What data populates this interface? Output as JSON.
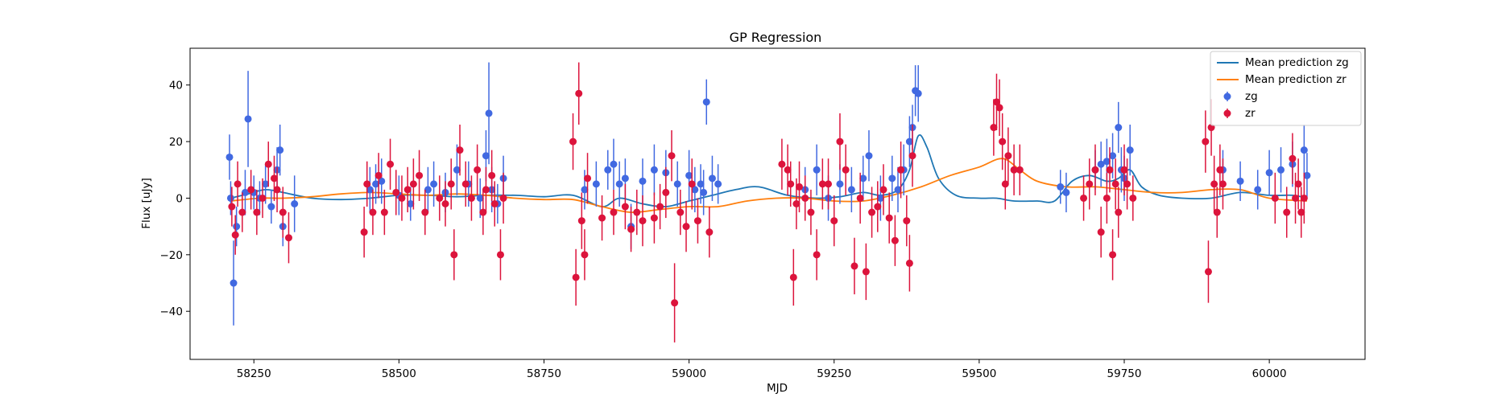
{
  "chart_data": {
    "type": "scatter",
    "title": "GP Regression",
    "xlabel": "MJD",
    "ylabel": "Flux [uJy]",
    "xlim": [
      58140,
      60165
    ],
    "ylim": [
      -57,
      53
    ],
    "xticks": [
      58250,
      58500,
      58750,
      59000,
      59250,
      59500,
      59750,
      60000
    ],
    "yticks": [
      -40,
      -20,
      0,
      20,
      40
    ],
    "grid": false,
    "legend_position": "top-right",
    "legend": [
      "Mean prediction zg",
      "Mean prediction zr",
      "zg",
      "zr"
    ],
    "colors": {
      "zg_line": "#1f77b4",
      "zr_line": "#ff7f0e",
      "zg_points": "#4169e1",
      "zr_points": "#dc143c"
    },
    "lines": [
      {
        "name": "Mean prediction zg",
        "x": [
          58210,
          58240,
          58270,
          58300,
          58350,
          58400,
          58450,
          58500,
          58550,
          58600,
          58650,
          58700,
          58750,
          58800,
          58850,
          58880,
          58920,
          58960,
          59000,
          59040,
          59080,
          59120,
          59170,
          59220,
          59260,
          59300,
          59330,
          59360,
          59380,
          59395,
          59410,
          59430,
          59460,
          59500,
          59530,
          59560,
          59600,
          59630,
          59660,
          59690,
          59720,
          59740,
          59760,
          59780,
          59810,
          59850,
          59900,
          59950,
          60000,
          60040,
          60065
        ],
        "y": [
          0,
          1.5,
          3,
          2,
          0,
          -0.5,
          0,
          1,
          1,
          0.5,
          1,
          1,
          0.5,
          1,
          -3,
          0,
          -2,
          -3,
          -1,
          1,
          3,
          4,
          1,
          0,
          0.5,
          2,
          1,
          3,
          10,
          22,
          18,
          7,
          1,
          0,
          0,
          -1,
          -1,
          -1,
          6,
          8,
          6,
          7,
          10,
          4,
          1,
          0,
          0,
          2,
          1,
          1,
          0
        ]
      },
      {
        "name": "Mean prediction zr",
        "x": [
          58210,
          58260,
          58300,
          58350,
          58400,
          58450,
          58500,
          58550,
          58600,
          58650,
          58700,
          58750,
          58800,
          58850,
          58900,
          58950,
          59000,
          59050,
          59100,
          59150,
          59200,
          59250,
          59300,
          59350,
          59400,
          59450,
          59500,
          59540,
          59570,
          59600,
          59650,
          59700,
          59750,
          59800,
          59850,
          59900,
          59950,
          60000,
          60065
        ],
        "y": [
          -1,
          0,
          0,
          0.5,
          1.5,
          2,
          1.5,
          1,
          1.5,
          1,
          0,
          -0.5,
          -0.5,
          -3,
          -5,
          -4,
          -3,
          -3,
          -1,
          0,
          0,
          -1,
          -1,
          1,
          4,
          8,
          11,
          14,
          10,
          6,
          4,
          4,
          3,
          2,
          2,
          3,
          3,
          0,
          -1
        ]
      }
    ],
    "series": [
      {
        "name": "zg",
        "x": [
          58208,
          58210,
          58215,
          58220,
          58235,
          58240,
          58250,
          58260,
          58270,
          58280,
          58290,
          58295,
          58300,
          58320,
          58450,
          58460,
          58470,
          58500,
          58520,
          58550,
          58560,
          58580,
          58600,
          58620,
          58640,
          58650,
          58655,
          58660,
          58670,
          58680,
          58820,
          58840,
          58860,
          58870,
          58880,
          58890,
          58900,
          58920,
          58940,
          58960,
          58980,
          59000,
          59010,
          59020,
          59025,
          59030,
          59040,
          59050,
          59200,
          59220,
          59240,
          59260,
          59280,
          59300,
          59310,
          59330,
          59350,
          59360,
          59370,
          59380,
          59385,
          59390,
          59395,
          59640,
          59650,
          59700,
          59710,
          59720,
          59730,
          59740,
          59745,
          59750,
          59760,
          59920,
          59950,
          59980,
          60000,
          60020,
          60040,
          60060,
          60065
        ],
        "y": [
          14.5,
          0,
          -30,
          -10,
          2,
          28,
          2,
          0,
          5,
          -3,
          10,
          17,
          -10,
          -2,
          3,
          5,
          6,
          1,
          -2,
          3,
          5,
          2,
          10,
          5,
          0,
          15,
          30,
          3,
          -2,
          7,
          3,
          5,
          10,
          12,
          5,
          7,
          -10,
          6,
          10,
          9,
          5,
          8,
          3,
          5,
          2,
          34,
          7,
          5,
          3,
          10,
          0,
          5,
          3,
          7,
          15,
          0,
          7,
          3,
          10,
          20,
          25,
          38,
          37,
          4,
          2,
          10,
          12,
          13,
          15,
          25,
          10,
          7,
          17,
          10,
          6,
          3,
          9,
          10,
          12,
          17,
          8
        ],
        "yerr": [
          8,
          6,
          15,
          7,
          8,
          17,
          6,
          6,
          7,
          6,
          8,
          9,
          7,
          10,
          8,
          7,
          8,
          7,
          6,
          8,
          8,
          7,
          9,
          8,
          7,
          9,
          18,
          8,
          7,
          8,
          7,
          8,
          7,
          9,
          8,
          7,
          8,
          8,
          9,
          8,
          8,
          9,
          8,
          7,
          8,
          8,
          8,
          7,
          8,
          9,
          8,
          7,
          8,
          8,
          9,
          8,
          8,
          8,
          9,
          9,
          8,
          9,
          10,
          6,
          7,
          7,
          8,
          8,
          8,
          9,
          8,
          8,
          9,
          7,
          7,
          7,
          8,
          8,
          8,
          9,
          8
        ]
      },
      {
        "name": "zr",
        "x": [
          58212,
          58218,
          58222,
          58230,
          58245,
          58255,
          58265,
          58275,
          58285,
          58290,
          58300,
          58310,
          58440,
          58445,
          58455,
          58465,
          58475,
          58485,
          58495,
          58505,
          58515,
          58525,
          58535,
          58545,
          58570,
          58580,
          58590,
          58595,
          58605,
          58615,
          58625,
          58635,
          58645,
          58650,
          58660,
          58665,
          58675,
          58680,
          58800,
          58805,
          58810,
          58815,
          58820,
          58825,
          58850,
          58870,
          58890,
          58900,
          58910,
          58920,
          58940,
          58950,
          58960,
          58970,
          58975,
          58985,
          58995,
          59005,
          59015,
          59035,
          59160,
          59170,
          59175,
          59180,
          59185,
          59190,
          59200,
          59210,
          59220,
          59230,
          59240,
          59250,
          59260,
          59270,
          59285,
          59295,
          59305,
          59315,
          59325,
          59335,
          59345,
          59355,
          59365,
          59375,
          59380,
          59385,
          59525,
          59530,
          59535,
          59540,
          59545,
          59550,
          59560,
          59570,
          59680,
          59690,
          59700,
          59710,
          59720,
          59725,
          59730,
          59735,
          59740,
          59750,
          59755,
          59765,
          59890,
          59895,
          59900,
          59905,
          59910,
          59915,
          59920,
          60010,
          60030,
          60040,
          60045,
          60050,
          60055,
          60060
        ],
        "y": [
          -3,
          -13,
          5,
          -5,
          3,
          -5,
          0,
          12,
          7,
          3,
          -5,
          -14,
          -12,
          5,
          -5,
          8,
          -5,
          12,
          2,
          0,
          3,
          5,
          8,
          -5,
          0,
          -2,
          5,
          -20,
          17,
          5,
          0,
          10,
          -5,
          3,
          8,
          -2,
          -20,
          0,
          20,
          -28,
          37,
          -8,
          -20,
          7,
          -7,
          -5,
          -3,
          -11,
          -5,
          -8,
          -7,
          -3,
          2,
          15,
          -37,
          -5,
          -10,
          5,
          -8,
          -12,
          12,
          10,
          5,
          -28,
          -2,
          4,
          0,
          -5,
          -20,
          5,
          5,
          -8,
          20,
          10,
          -24,
          0,
          -26,
          -5,
          -3,
          3,
          -7,
          -15,
          10,
          -8,
          -23,
          15,
          25,
          34,
          32,
          20,
          5,
          15,
          10,
          10,
          0,
          5,
          10,
          -12,
          0,
          10,
          -20,
          5,
          -5,
          10,
          5,
          0,
          20,
          -26,
          25,
          5,
          -5,
          10,
          5,
          0,
          -5,
          14,
          0,
          5,
          -5,
          0
        ],
        "yerr": [
          7,
          7,
          8,
          7,
          7,
          8,
          7,
          8,
          8,
          8,
          9,
          9,
          9,
          8,
          8,
          8,
          8,
          9,
          8,
          8,
          8,
          9,
          9,
          8,
          8,
          8,
          9,
          9,
          9,
          8,
          8,
          9,
          8,
          8,
          9,
          8,
          9,
          9,
          10,
          10,
          11,
          10,
          9,
          9,
          8,
          8,
          8,
          8,
          8,
          9,
          9,
          8,
          9,
          9,
          14,
          8,
          9,
          9,
          8,
          9,
          9,
          9,
          8,
          10,
          9,
          9,
          8,
          8,
          9,
          9,
          9,
          9,
          10,
          9,
          10,
          9,
          10,
          9,
          9,
          9,
          9,
          9,
          10,
          9,
          10,
          11,
          10,
          10,
          10,
          10,
          9,
          10,
          9,
          9,
          8,
          9,
          9,
          9,
          9,
          8,
          9,
          9,
          9,
          9,
          9,
          8,
          11,
          11,
          10,
          10,
          9,
          9,
          9,
          9,
          9,
          9,
          9,
          9,
          9,
          9
        ]
      }
    ]
  }
}
